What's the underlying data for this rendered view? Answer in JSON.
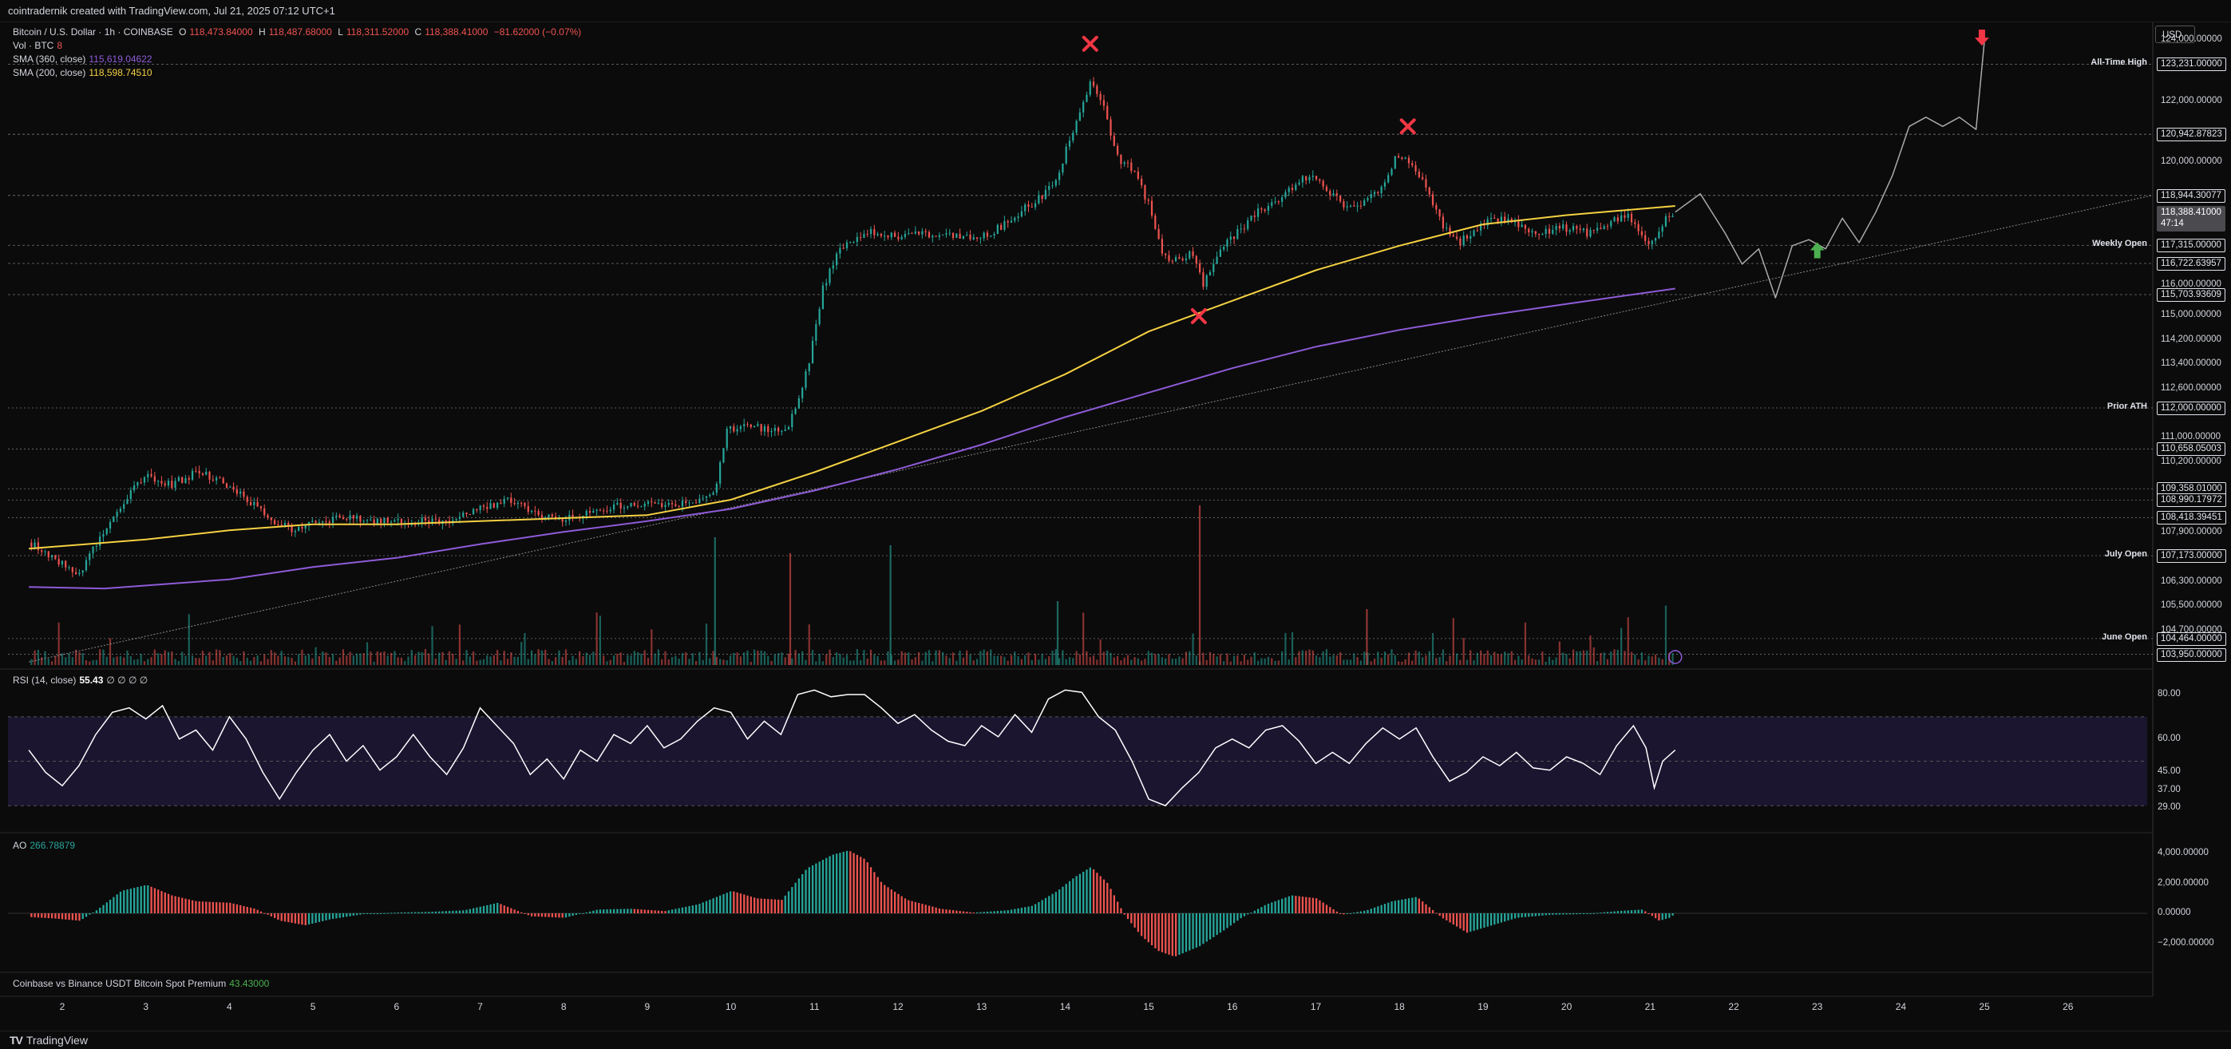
{
  "header": {
    "text": "cointradernik created with TradingView.com, Jul 21, 2025 07:12 UTC+1"
  },
  "legend": {
    "symbol": "Bitcoin / U.S. Dollar · 1h · COINBASE",
    "o_label": "O",
    "o": "118,473.84000",
    "h_label": "H",
    "h": "118,487.68000",
    "l_label": "L",
    "l": "118,311.52000",
    "c_label": "C",
    "c": "118,388.41000",
    "change": "−81.62000 (−0.07%)",
    "vol_label": "Vol · BTC",
    "vol": "8",
    "sma360_label": "SMA (360, close)",
    "sma360": "115,619.04622",
    "sma200_label": "SMA (200, close)",
    "sma200": "118,598.74510"
  },
  "currency": "USD",
  "price_axis": {
    "ticks": [
      "124,000.00000",
      "122,000.00000",
      "120,000.00000",
      "116,000.00000",
      "115,000.00000",
      "114,200.00000",
      "113,400.00000",
      "112,600.00000",
      "111,000.00000",
      "110,200.00000",
      "107,900.00000",
      "106,300.00000",
      "105,500.00000",
      "104,700.00000"
    ],
    "levels": [
      {
        "label": "All-Time High",
        "value": "123,231.00000"
      },
      {
        "label": "",
        "value": "120,942.87823"
      },
      {
        "label": "",
        "value": "118,944.30077"
      },
      {
        "label": "Weekly Open",
        "value": "117,315.00000"
      },
      {
        "label": "",
        "value": "116,722.63957"
      },
      {
        "label": "",
        "value": "115,703.93609"
      },
      {
        "label": "Prior ATH",
        "value": "112,000.00000"
      },
      {
        "label": "",
        "value": "110,658.05003"
      },
      {
        "label": "",
        "value": "109,358.01000"
      },
      {
        "label": "",
        "value": "108,990.17972"
      },
      {
        "label": "",
        "value": "108,418.39451"
      },
      {
        "label": "July Open",
        "value": "107,173.00000"
      },
      {
        "label": "June Open",
        "value": "104,464.00000"
      },
      {
        "label": "",
        "value": "103,950.00000"
      }
    ],
    "last_price": "118,388.41000",
    "countdown": "47:14"
  },
  "time_axis": {
    "ticks": [
      "2",
      "3",
      "4",
      "5",
      "6",
      "7",
      "8",
      "9",
      "10",
      "11",
      "12",
      "13",
      "14",
      "15",
      "16",
      "17",
      "18",
      "19",
      "20",
      "21",
      "22",
      "23",
      "24",
      "25",
      "26"
    ]
  },
  "rsi": {
    "label": "RSI (14, close)",
    "value": "55.43",
    "extra": "∅ ∅ ∅ ∅",
    "ticks": [
      "80.00",
      "60.00",
      "45.00",
      "37.00",
      "29.00"
    ]
  },
  "ao": {
    "label": "AO",
    "value": "266.78879",
    "ticks": [
      "4,000.00000",
      "2,000.00000",
      "0.00000",
      "−2,000.00000"
    ]
  },
  "premium": {
    "label": "Coinbase vs Binance USDT Bitcoin Spot Premium",
    "value": "43.43000"
  },
  "footer": {
    "brand": "TradingView"
  },
  "colors": {
    "up": "#26a69a",
    "down": "#ef5350",
    "sma200": "#f5d142",
    "sma360": "#8e5bd8",
    "mark": "#f23645",
    "up_arrow": "#4caf50"
  },
  "chart_data": {
    "type": "candlestick",
    "title": "Bitcoin / U.S. Dollar · 1h · COINBASE",
    "x_unit": "day of month (Jul 2025)",
    "ylim": [
      103600,
      124600
    ],
    "close_series": [
      [
        1.6,
        107600
      ],
      [
        1.9,
        107000
      ],
      [
        2.2,
        106600
      ],
      [
        2.4,
        107600
      ],
      [
        2.6,
        108500
      ],
      [
        2.8,
        109200
      ],
      [
        3.0,
        109800
      ],
      [
        3.3,
        109500
      ],
      [
        3.6,
        109900
      ],
      [
        3.9,
        109600
      ],
      [
        4.2,
        109000
      ],
      [
        4.5,
        108300
      ],
      [
        4.8,
        108000
      ],
      [
        5.1,
        108300
      ],
      [
        5.4,
        108400
      ],
      [
        5.8,
        108300
      ],
      [
        6.2,
        108300
      ],
      [
        6.6,
        108300
      ],
      [
        7.0,
        108700
      ],
      [
        7.3,
        109000
      ],
      [
        7.6,
        108700
      ],
      [
        7.9,
        108300
      ],
      [
        8.2,
        108500
      ],
      [
        8.5,
        108700
      ],
      [
        8.8,
        108900
      ],
      [
        9.2,
        108800
      ],
      [
        9.5,
        108900
      ],
      [
        9.8,
        109300
      ],
      [
        9.95,
        111300
      ],
      [
        10.2,
        111500
      ],
      [
        10.5,
        111200
      ],
      [
        10.7,
        111500
      ],
      [
        10.9,
        113200
      ],
      [
        11.1,
        116000
      ],
      [
        11.3,
        117200
      ],
      [
        11.6,
        117800
      ],
      [
        11.9,
        117600
      ],
      [
        12.2,
        117700
      ],
      [
        12.5,
        117600
      ],
      [
        12.8,
        117600
      ],
      [
        13.1,
        117700
      ],
      [
        13.4,
        118300
      ],
      [
        13.7,
        118900
      ],
      [
        13.9,
        119600
      ],
      [
        14.1,
        121200
      ],
      [
        14.3,
        122700
      ],
      [
        14.45,
        121800
      ],
      [
        14.6,
        120200
      ],
      [
        14.8,
        119800
      ],
      [
        15.0,
        118600
      ],
      [
        15.15,
        117000
      ],
      [
        15.3,
        116800
      ],
      [
        15.5,
        117100
      ],
      [
        15.65,
        116000
      ],
      [
        15.8,
        117000
      ],
      [
        16.0,
        117600
      ],
      [
        16.3,
        118400
      ],
      [
        16.6,
        118900
      ],
      [
        16.8,
        119500
      ],
      [
        17.0,
        119500
      ],
      [
        17.2,
        118900
      ],
      [
        17.4,
        118500
      ],
      [
        17.6,
        118800
      ],
      [
        17.8,
        119300
      ],
      [
        17.95,
        120200
      ],
      [
        18.1,
        120100
      ],
      [
        18.3,
        119200
      ],
      [
        18.5,
        118000
      ],
      [
        18.7,
        117400
      ],
      [
        18.9,
        117800
      ],
      [
        19.1,
        118200
      ],
      [
        19.3,
        118200
      ],
      [
        19.5,
        117800
      ],
      [
        19.7,
        117700
      ],
      [
        19.9,
        117900
      ],
      [
        20.1,
        117800
      ],
      [
        20.3,
        117700
      ],
      [
        20.5,
        118100
      ],
      [
        20.7,
        118300
      ],
      [
        20.85,
        117900
      ],
      [
        20.95,
        117200
      ],
      [
        21.05,
        117500
      ],
      [
        21.15,
        118100
      ],
      [
        21.3,
        118400
      ]
    ],
    "series": [
      {
        "name": "SMA (200, close)",
        "values": [
          [
            1.6,
            107400
          ],
          [
            3,
            107700
          ],
          [
            4,
            108000
          ],
          [
            5,
            108200
          ],
          [
            6,
            108200
          ],
          [
            7,
            108300
          ],
          [
            8,
            108400
          ],
          [
            9,
            108500
          ],
          [
            10,
            109000
          ],
          [
            11,
            109900
          ],
          [
            12,
            110900
          ],
          [
            13,
            111900
          ],
          [
            14,
            113100
          ],
          [
            15,
            114500
          ],
          [
            16,
            115500
          ],
          [
            17,
            116500
          ],
          [
            18,
            117300
          ],
          [
            19,
            118000
          ],
          [
            20,
            118300
          ],
          [
            21.3,
            118600
          ]
        ]
      },
      {
        "name": "SMA (360, close)",
        "values": [
          [
            1.6,
            106150
          ],
          [
            2.5,
            106100
          ],
          [
            4,
            106400
          ],
          [
            5,
            106800
          ],
          [
            6,
            107100
          ],
          [
            7,
            107550
          ],
          [
            8,
            107950
          ],
          [
            9,
            108300
          ],
          [
            10,
            108700
          ],
          [
            11,
            109300
          ],
          [
            12,
            110000
          ],
          [
            13,
            110800
          ],
          [
            14,
            111700
          ],
          [
            15,
            112500
          ],
          [
            16,
            113300
          ],
          [
            17,
            114000
          ],
          [
            18,
            114550
          ],
          [
            19,
            115000
          ],
          [
            20,
            115400
          ],
          [
            21.3,
            115900
          ]
        ]
      },
      {
        "name": "projection",
        "values": [
          [
            21.3,
            118400
          ],
          [
            21.6,
            119000
          ],
          [
            21.9,
            117700
          ],
          [
            22.1,
            116700
          ],
          [
            22.3,
            117200
          ],
          [
            22.5,
            115600
          ],
          [
            22.7,
            117300
          ],
          [
            22.9,
            117500
          ],
          [
            23.1,
            117200
          ],
          [
            23.3,
            118200
          ],
          [
            23.5,
            117400
          ],
          [
            23.7,
            118400
          ],
          [
            23.9,
            119600
          ],
          [
            24.1,
            121200
          ],
          [
            24.3,
            121500
          ],
          [
            24.5,
            121200
          ],
          [
            24.7,
            121500
          ],
          [
            24.9,
            121100
          ],
          [
            25.0,
            124000
          ]
        ]
      }
    ],
    "rsi_series": [
      [
        1.6,
        55
      ],
      [
        1.8,
        45
      ],
      [
        2.0,
        39
      ],
      [
        2.2,
        48
      ],
      [
        2.4,
        62
      ],
      [
        2.6,
        72
      ],
      [
        2.8,
        74
      ],
      [
        3.0,
        69
      ],
      [
        3.2,
        75
      ],
      [
        3.4,
        60
      ],
      [
        3.6,
        64
      ],
      [
        3.8,
        55
      ],
      [
        4.0,
        70
      ],
      [
        4.2,
        60
      ],
      [
        4.4,
        45
      ],
      [
        4.6,
        33
      ],
      [
        4.8,
        45
      ],
      [
        5.0,
        55
      ],
      [
        5.2,
        62
      ],
      [
        5.4,
        50
      ],
      [
        5.6,
        57
      ],
      [
        5.8,
        46
      ],
      [
        6.0,
        52
      ],
      [
        6.2,
        62
      ],
      [
        6.4,
        52
      ],
      [
        6.6,
        44
      ],
      [
        6.8,
        56
      ],
      [
        7.0,
        74
      ],
      [
        7.2,
        66
      ],
      [
        7.4,
        58
      ],
      [
        7.6,
        44
      ],
      [
        7.8,
        51
      ],
      [
        8.0,
        42
      ],
      [
        8.2,
        55
      ],
      [
        8.4,
        50
      ],
      [
        8.6,
        62
      ],
      [
        8.8,
        58
      ],
      [
        9.0,
        66
      ],
      [
        9.2,
        56
      ],
      [
        9.4,
        60
      ],
      [
        9.6,
        68
      ],
      [
        9.8,
        74
      ],
      [
        10.0,
        72
      ],
      [
        10.2,
        60
      ],
      [
        10.4,
        68
      ],
      [
        10.6,
        62
      ],
      [
        10.8,
        80
      ],
      [
        11.0,
        82
      ],
      [
        11.2,
        79
      ],
      [
        11.4,
        80
      ],
      [
        11.6,
        80
      ],
      [
        11.8,
        74
      ],
      [
        12.0,
        67
      ],
      [
        12.2,
        71
      ],
      [
        12.4,
        64
      ],
      [
        12.6,
        59
      ],
      [
        12.8,
        57
      ],
      [
        13.0,
        66
      ],
      [
        13.2,
        61
      ],
      [
        13.4,
        71
      ],
      [
        13.6,
        63
      ],
      [
        13.8,
        78
      ],
      [
        14.0,
        82
      ],
      [
        14.2,
        81
      ],
      [
        14.4,
        70
      ],
      [
        14.6,
        64
      ],
      [
        14.8,
        50
      ],
      [
        15.0,
        33
      ],
      [
        15.2,
        30
      ],
      [
        15.4,
        38
      ],
      [
        15.6,
        45
      ],
      [
        15.8,
        56
      ],
      [
        16.0,
        60
      ],
      [
        16.2,
        56
      ],
      [
        16.4,
        64
      ],
      [
        16.6,
        66
      ],
      [
        16.8,
        59
      ],
      [
        17.0,
        49
      ],
      [
        17.2,
        54
      ],
      [
        17.4,
        49
      ],
      [
        17.6,
        58
      ],
      [
        17.8,
        65
      ],
      [
        18.0,
        60
      ],
      [
        18.2,
        65
      ],
      [
        18.4,
        52
      ],
      [
        18.6,
        41
      ],
      [
        18.8,
        45
      ],
      [
        19.0,
        52
      ],
      [
        19.2,
        48
      ],
      [
        19.4,
        54
      ],
      [
        19.6,
        47
      ],
      [
        19.8,
        46
      ],
      [
        20.0,
        52
      ],
      [
        20.2,
        49
      ],
      [
        20.4,
        44
      ],
      [
        20.6,
        57
      ],
      [
        20.8,
        66
      ],
      [
        20.95,
        56
      ],
      [
        21.05,
        38
      ],
      [
        21.15,
        50
      ],
      [
        21.3,
        55
      ]
    ],
    "ao_series": [
      [
        1.6,
        -250
      ],
      [
        1.9,
        -350
      ],
      [
        2.2,
        -500
      ],
      [
        2.4,
        200
      ],
      [
        2.7,
        1500
      ],
      [
        3.0,
        1900
      ],
      [
        3.3,
        1200
      ],
      [
        3.6,
        800
      ],
      [
        4.0,
        700
      ],
      [
        4.3,
        300
      ],
      [
        4.6,
        -500
      ],
      [
        4.9,
        -800
      ],
      [
        5.2,
        -400
      ],
      [
        5.6,
        -50
      ],
      [
        6.0,
        50
      ],
      [
        6.4,
        100
      ],
      [
        6.8,
        200
      ],
      [
        7.2,
        700
      ],
      [
        7.6,
        -200
      ],
      [
        8.0,
        -300
      ],
      [
        8.4,
        250
      ],
      [
        8.8,
        300
      ],
      [
        9.2,
        150
      ],
      [
        9.6,
        600
      ],
      [
        10.0,
        1500
      ],
      [
        10.3,
        1000
      ],
      [
        10.6,
        900
      ],
      [
        10.9,
        3000
      ],
      [
        11.2,
        3900
      ],
      [
        11.4,
        4200
      ],
      [
        11.6,
        3600
      ],
      [
        11.8,
        2000
      ],
      [
        12.1,
        900
      ],
      [
        12.5,
        300
      ],
      [
        12.9,
        50
      ],
      [
        13.3,
        200
      ],
      [
        13.6,
        500
      ],
      [
        13.9,
        1500
      ],
      [
        14.1,
        2400
      ],
      [
        14.3,
        3100
      ],
      [
        14.5,
        2000
      ],
      [
        14.7,
        -100
      ],
      [
        14.9,
        -1500
      ],
      [
        15.1,
        -2500
      ],
      [
        15.3,
        -2900
      ],
      [
        15.6,
        -2200
      ],
      [
        15.9,
        -1100
      ],
      [
        16.1,
        -300
      ],
      [
        16.4,
        600
      ],
      [
        16.7,
        1200
      ],
      [
        17.0,
        1000
      ],
      [
        17.3,
        -100
      ],
      [
        17.6,
        200
      ],
      [
        17.9,
        800
      ],
      [
        18.2,
        1100
      ],
      [
        18.5,
        -300
      ],
      [
        18.8,
        -1300
      ],
      [
        19.1,
        -800
      ],
      [
        19.4,
        -300
      ],
      [
        19.8,
        -100
      ],
      [
        20.2,
        -50
      ],
      [
        20.6,
        150
      ],
      [
        20.9,
        250
      ],
      [
        21.1,
        -500
      ],
      [
        21.25,
        -250
      ],
      [
        21.3,
        267
      ]
    ]
  }
}
